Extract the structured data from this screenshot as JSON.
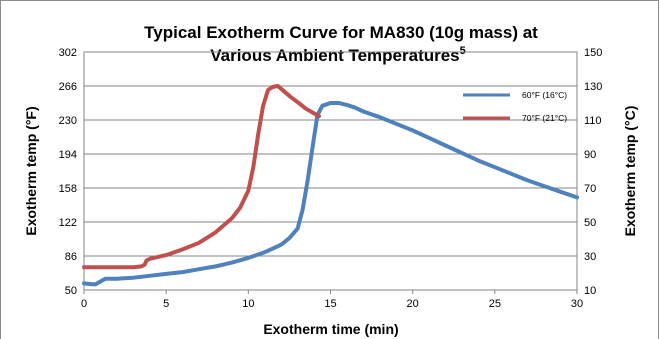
{
  "chart_data": {
    "type": "line",
    "title_line1": "Typical Exotherm Curve for MA830 (10g mass) at",
    "title_line2": "Various Ambient Temperatures",
    "title_superscript": "5",
    "xlabel": "Exotherm time (min)",
    "ylabel_left": "Exotherm temp (°F)",
    "ylabel_right": "Exotherm temp (°C)",
    "xlim": [
      0,
      30
    ],
    "ylim_left": [
      50,
      302
    ],
    "ylim_right": [
      10,
      150
    ],
    "x_ticks": [
      "0",
      "5",
      "10",
      "15",
      "20",
      "25",
      "30"
    ],
    "y_left_ticks": [
      "50",
      "86",
      "122",
      "158",
      "194",
      "230",
      "266",
      "302"
    ],
    "y_right_ticks": [
      "10",
      "30",
      "50",
      "70",
      "90",
      "110",
      "130",
      "150"
    ],
    "grid": true,
    "legend_position": "top-right",
    "colors": {
      "60F": "#4f81bd",
      "70F": "#c0504d",
      "grid": "#868686",
      "frame": "#8c8c8c"
    },
    "series": [
      {
        "name": "60°F (16°C)",
        "color": "#4f81bd",
        "x": [
          0,
          0.5,
          0.7,
          1,
          1.3,
          2,
          3,
          4,
          5,
          6,
          7,
          8,
          9,
          10,
          11,
          12,
          12.5,
          13,
          13.3,
          13.6,
          13.9,
          14.2,
          14.5,
          15,
          15.5,
          16,
          16.5,
          17,
          18,
          19,
          20,
          21,
          22,
          23,
          24,
          25,
          26,
          27,
          28,
          29,
          30
        ],
        "y": [
          57,
          56,
          56,
          59,
          62,
          62,
          63,
          65,
          67,
          69,
          72,
          75,
          79,
          84,
          90,
          98,
          105,
          115,
          135,
          165,
          200,
          235,
          245,
          248,
          248,
          246,
          243,
          239,
          233,
          226,
          219,
          211,
          203,
          195,
          187,
          180,
          173,
          166,
          160,
          154,
          148
        ]
      },
      {
        "name": "70°F (21°C)",
        "color": "#c0504d",
        "x": [
          0,
          1,
          2,
          3,
          3.5,
          3.7,
          3.8,
          4,
          5,
          6,
          7,
          8,
          9,
          9.5,
          10,
          10.3,
          10.6,
          10.9,
          11.2,
          11.5,
          11.8,
          12.2,
          12.6,
          13,
          13.5,
          14,
          14.3
        ],
        "y": [
          74,
          74,
          74,
          74,
          75,
          77,
          81,
          83,
          87,
          93,
          100,
          111,
          126,
          137,
          155,
          180,
          215,
          245,
          262,
          265,
          266,
          260,
          254,
          249,
          242,
          237,
          234
        ]
      }
    ]
  }
}
